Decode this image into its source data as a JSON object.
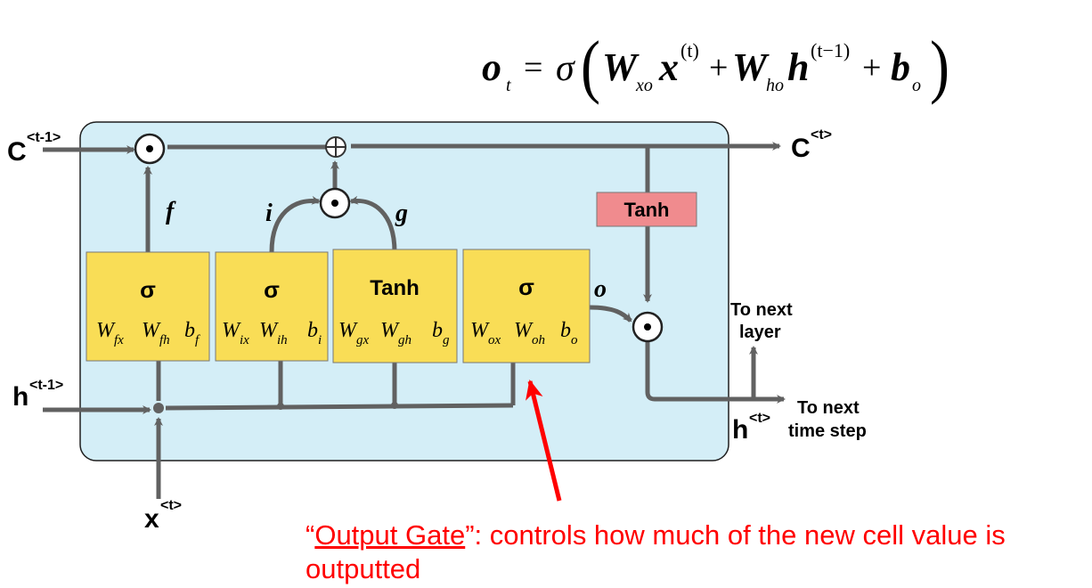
{
  "equation": {
    "lhs": "o",
    "lhs_sub": "t",
    "sigma": "σ",
    "w_xo": "W",
    "w_xo_sub": "xo",
    "x": "x",
    "x_sup": "(t)",
    "w_ho": "W",
    "w_ho_sub": "ho",
    "h": "h",
    "h_sup": "(t−1)",
    "b": "b",
    "b_sub": "o"
  },
  "labels": {
    "c_prev": "C",
    "c_prev_sup": "<t-1>",
    "c_next": "C",
    "c_next_sup": "<t>",
    "h_prev": "h",
    "h_prev_sup": "<t-1>",
    "x_in": "x",
    "x_in_sup": "<t>",
    "h_out": "h",
    "h_out_sup": "<t>",
    "to_next_layer_1": "To next",
    "to_next_layer_2": "layer",
    "to_next_time_1": "To next",
    "to_next_time_2": "time step",
    "f": "f",
    "i": "i",
    "g": "g",
    "o": "o",
    "tanh_top": "Tanh"
  },
  "gates": [
    {
      "func": "σ",
      "w1": "W",
      "w1_sub": "fx",
      "w2": "W",
      "w2_sub": "fh",
      "b": "b",
      "b_sub": "f"
    },
    {
      "func": "σ",
      "w1": "W",
      "w1_sub": "ix",
      "w2": "W",
      "w2_sub": "ih",
      "b": "b",
      "b_sub": "i"
    },
    {
      "func": "Tanh",
      "w1": "W",
      "w1_sub": "gx",
      "w2": "W",
      "w2_sub": "gh",
      "b": "b",
      "b_sub": "g"
    },
    {
      "func": "σ",
      "w1": "W",
      "w1_sub": "ox",
      "w2": "W",
      "w2_sub": "oh",
      "b": "b",
      "b_sub": "o"
    }
  ],
  "caption": {
    "open_quote": "“",
    "title": "Output Gate",
    "rest": "”: controls how much of the new cell value is outputted"
  },
  "colors": {
    "cell_bg": "#d4eef7",
    "gate_fill": "#f9dd56",
    "tanh_fill": "#f08b8e",
    "line": "#616161",
    "annotation": "#ff0000"
  }
}
